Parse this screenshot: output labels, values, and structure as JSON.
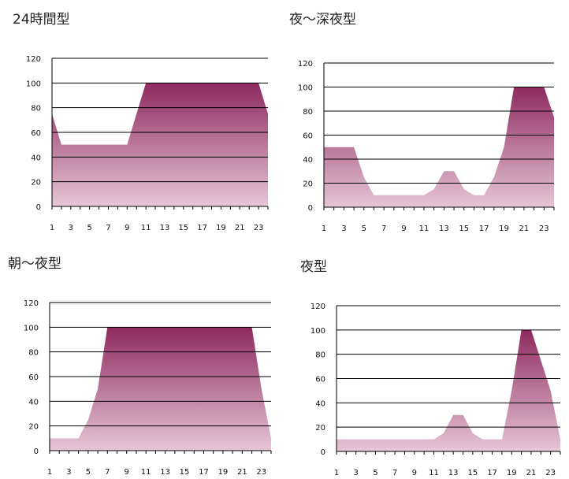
{
  "colors": {
    "fill_top": "#8e2a5e",
    "fill_bottom": "#e6c6d6",
    "grid": "#000000",
    "axis": "#000000"
  },
  "chart_data": [
    {
      "type": "area",
      "title": "24時間型",
      "x": [
        1,
        2,
        3,
        4,
        5,
        6,
        7,
        8,
        9,
        10,
        11,
        12,
        13,
        14,
        15,
        16,
        17,
        18,
        19,
        20,
        21,
        22,
        23,
        24
      ],
      "xticks": [
        "1",
        "3",
        "5",
        "7",
        "9",
        "11",
        "13",
        "15",
        "17",
        "19",
        "21",
        "23"
      ],
      "yticks": [
        "0",
        "20",
        "40",
        "60",
        "80",
        "100",
        "120"
      ],
      "ylim": [
        0,
        120
      ],
      "grid": true,
      "values": [
        75,
        50,
        50,
        50,
        50,
        50,
        50,
        50,
        50,
        75,
        100,
        100,
        100,
        100,
        100,
        100,
        100,
        100,
        100,
        100,
        100,
        100,
        100,
        75
      ]
    },
    {
      "type": "area",
      "title": "夜～深夜型",
      "x": [
        1,
        2,
        3,
        4,
        5,
        6,
        7,
        8,
        9,
        10,
        11,
        12,
        13,
        14,
        15,
        16,
        17,
        18,
        19,
        20,
        21,
        22,
        23,
        24
      ],
      "xticks": [
        "1",
        "3",
        "5",
        "7",
        "9",
        "11",
        "13",
        "15",
        "17",
        "19",
        "21",
        "23"
      ],
      "yticks": [
        "0",
        "20",
        "40",
        "60",
        "80",
        "100",
        "120"
      ],
      "ylim": [
        0,
        120
      ],
      "grid": true,
      "values": [
        50,
        50,
        50,
        50,
        25,
        10,
        10,
        10,
        10,
        10,
        10,
        15,
        30,
        30,
        15,
        10,
        10,
        25,
        50,
        100,
        100,
        100,
        100,
        75
      ]
    },
    {
      "type": "area",
      "title": "朝～夜型",
      "x": [
        1,
        2,
        3,
        4,
        5,
        6,
        7,
        8,
        9,
        10,
        11,
        12,
        13,
        14,
        15,
        16,
        17,
        18,
        19,
        20,
        21,
        22,
        23,
        24
      ],
      "xticks": [
        "1",
        "3",
        "5",
        "7",
        "9",
        "11",
        "13",
        "15",
        "17",
        "19",
        "21",
        "23"
      ],
      "yticks": [
        "0",
        "20",
        "40",
        "60",
        "80",
        "100",
        "120"
      ],
      "ylim": [
        0,
        120
      ],
      "grid": true,
      "values": [
        10,
        10,
        10,
        10,
        25,
        50,
        100,
        100,
        100,
        100,
        100,
        100,
        100,
        100,
        100,
        100,
        100,
        100,
        100,
        100,
        100,
        100,
        50,
        10
      ]
    },
    {
      "type": "area",
      "title": "夜型",
      "x": [
        1,
        2,
        3,
        4,
        5,
        6,
        7,
        8,
        9,
        10,
        11,
        12,
        13,
        14,
        15,
        16,
        17,
        18,
        19,
        20,
        21,
        22,
        23,
        24
      ],
      "xticks": [
        "1",
        "3",
        "5",
        "7",
        "9",
        "11",
        "13",
        "15",
        "17",
        "19",
        "21",
        "23"
      ],
      "yticks": [
        "0",
        "20",
        "40",
        "60",
        "80",
        "100",
        "120"
      ],
      "ylim": [
        0,
        120
      ],
      "grid": true,
      "values": [
        10,
        10,
        10,
        10,
        10,
        10,
        10,
        10,
        10,
        10,
        10,
        15,
        30,
        30,
        15,
        10,
        10,
        10,
        50,
        100,
        100,
        75,
        50,
        10
      ]
    }
  ]
}
